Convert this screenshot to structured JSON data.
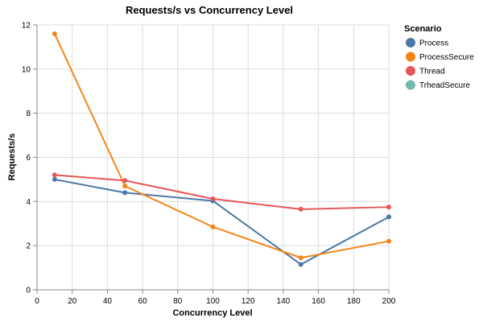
{
  "chart_data": {
    "type": "line",
    "title": "Requests/s vs Concurrency Level",
    "xlabel": "Concurrency Level",
    "ylabel": "Requests/s",
    "xlim": [
      0,
      200
    ],
    "ylim": [
      0,
      12
    ],
    "x_ticks": [
      0,
      20,
      40,
      60,
      80,
      100,
      120,
      140,
      160,
      180,
      200
    ],
    "y_ticks": [
      0,
      2,
      4,
      6,
      8,
      10,
      12
    ],
    "grid": true,
    "legend": {
      "title": "Scenario",
      "placement": "top-right"
    },
    "series": [
      {
        "name": "Process",
        "color": "#4c78a8",
        "x": [
          10,
          50,
          100,
          150,
          200
        ],
        "y": [
          5.0,
          4.4,
          4.03,
          1.15,
          3.3
        ]
      },
      {
        "name": "ProcessSecure",
        "color": "#f58518",
        "x": [
          10,
          50,
          100,
          150,
          200
        ],
        "y": [
          11.6,
          4.7,
          2.85,
          1.45,
          2.2
        ]
      },
      {
        "name": "Thread",
        "color": "#e45756",
        "x": [
          10,
          50,
          100,
          150,
          200
        ],
        "y": [
          5.2,
          4.95,
          4.12,
          3.65,
          3.75
        ]
      },
      {
        "name": "TrheadSecure",
        "color": "#72b7b2",
        "x": [],
        "y": []
      }
    ]
  }
}
